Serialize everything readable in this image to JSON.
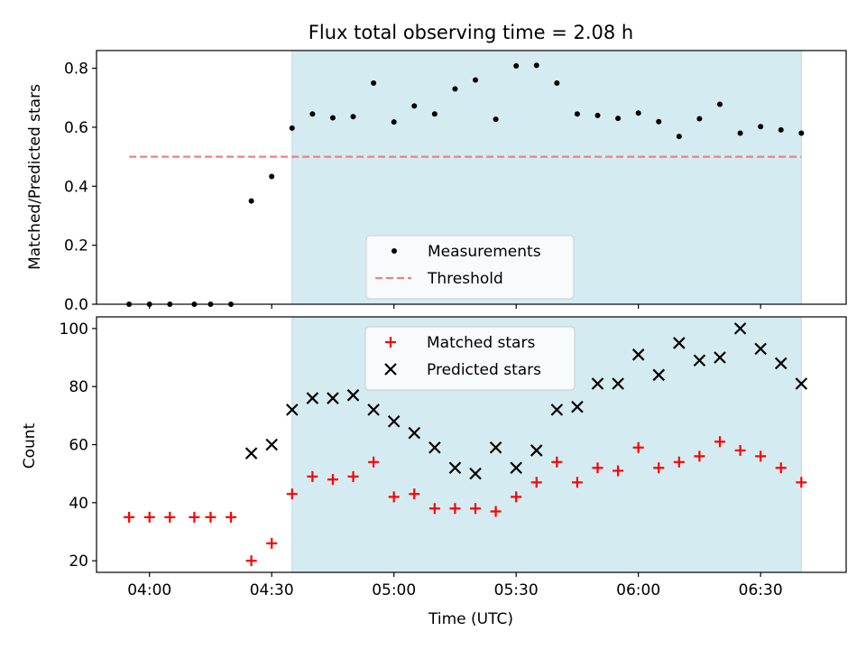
{
  "chart_data": [
    {
      "type": "scatter",
      "title": "Flux total observing time = 2.08 h",
      "xlabel": "",
      "ylabel": "Matched/Predicted stars",
      "xlim": [
        "03:47",
        "06:51"
      ],
      "ylim": [
        0,
        0.86
      ],
      "yticks": [
        0.0,
        0.2,
        0.4,
        0.6,
        0.8
      ],
      "ytick_labels": [
        "0.0",
        "0.2",
        "0.4",
        "0.6",
        "0.8"
      ],
      "observing_span": [
        "04:35",
        "06:40"
      ],
      "observing_span_color": "#d4ebf1",
      "legend": "lower-center",
      "series": [
        {
          "name": "Measurements",
          "marker": "dot",
          "color": "#000000",
          "x": [
            "03:55",
            "04:00",
            "04:05",
            "04:11",
            "04:15",
            "04:20",
            "04:25",
            "04:30",
            "04:35",
            "04:40",
            "04:45",
            "04:50",
            "04:55",
            "05:00",
            "05:05",
            "05:10",
            "05:15",
            "05:20",
            "05:25",
            "05:30",
            "05:35",
            "05:40",
            "05:45",
            "05:50",
            "05:55",
            "06:00",
            "06:05",
            "06:10",
            "06:15",
            "06:20",
            "06:25",
            "06:30",
            "06:35",
            "06:40"
          ],
          "y": [
            0.0,
            0.0,
            0.0,
            0.0,
            0.0,
            0.0,
            0.35,
            0.433,
            0.597,
            0.645,
            0.632,
            0.636,
            0.75,
            0.618,
            0.672,
            0.645,
            0.73,
            0.76,
            0.627,
            0.808,
            0.81,
            0.75,
            0.645,
            0.64,
            0.63,
            0.648,
            0.619,
            0.569,
            0.629,
            0.678,
            0.58,
            0.602,
            0.591,
            0.58
          ]
        },
        {
          "name": "Threshold",
          "line": "dashed",
          "color": "#f08080",
          "x": [
            "03:55",
            "06:40"
          ],
          "y": [
            0.5,
            0.5
          ]
        }
      ]
    },
    {
      "type": "scatter",
      "title": "",
      "xlabel": "Time (UTC)",
      "ylabel": "Count",
      "xlim": [
        "03:47",
        "06:51"
      ],
      "ylim": [
        16,
        104
      ],
      "xticks": [
        "04:00",
        "04:30",
        "05:00",
        "05:30",
        "06:00",
        "06:30"
      ],
      "yticks": [
        20,
        40,
        60,
        80,
        100
      ],
      "observing_span": [
        "04:35",
        "06:40"
      ],
      "observing_span_color": "#d4ebf1",
      "legend": "upper-center",
      "series": [
        {
          "name": "Matched stars",
          "marker": "plus",
          "color": "#ff0000",
          "x": [
            "03:55",
            "04:00",
            "04:05",
            "04:11",
            "04:15",
            "04:20",
            "04:25",
            "04:30",
            "04:35",
            "04:40",
            "04:45",
            "04:50",
            "04:55",
            "05:00",
            "05:05",
            "05:10",
            "05:15",
            "05:20",
            "05:25",
            "05:30",
            "05:35",
            "05:40",
            "05:45",
            "05:50",
            "05:55",
            "06:00",
            "06:05",
            "06:10",
            "06:15",
            "06:20",
            "06:25",
            "06:30",
            "06:35",
            "06:40"
          ],
          "y": [
            35,
            35,
            35,
            35,
            35,
            35,
            20,
            26,
            43,
            49,
            48,
            49,
            54,
            42,
            43,
            38,
            38,
            38,
            37,
            42,
            47,
            54,
            47,
            52,
            51,
            59,
            52,
            54,
            56,
            61,
            58,
            56,
            52,
            47
          ]
        },
        {
          "name": "Predicted stars",
          "marker": "x",
          "color": "#000000",
          "x": [
            "04:25",
            "04:30",
            "04:35",
            "04:40",
            "04:45",
            "04:50",
            "04:55",
            "05:00",
            "05:05",
            "05:10",
            "05:15",
            "05:20",
            "05:25",
            "05:30",
            "05:35",
            "05:40",
            "05:45",
            "05:50",
            "05:55",
            "06:00",
            "06:05",
            "06:10",
            "06:15",
            "06:20",
            "06:25",
            "06:30",
            "06:35",
            "06:40"
          ],
          "y": [
            57,
            60,
            72,
            76,
            76,
            77,
            72,
            68,
            64,
            59,
            52,
            50,
            59,
            52,
            58,
            72,
            73,
            81,
            81,
            91,
            84,
            95,
            89,
            90,
            100,
            93,
            88,
            81
          ]
        }
      ]
    }
  ]
}
